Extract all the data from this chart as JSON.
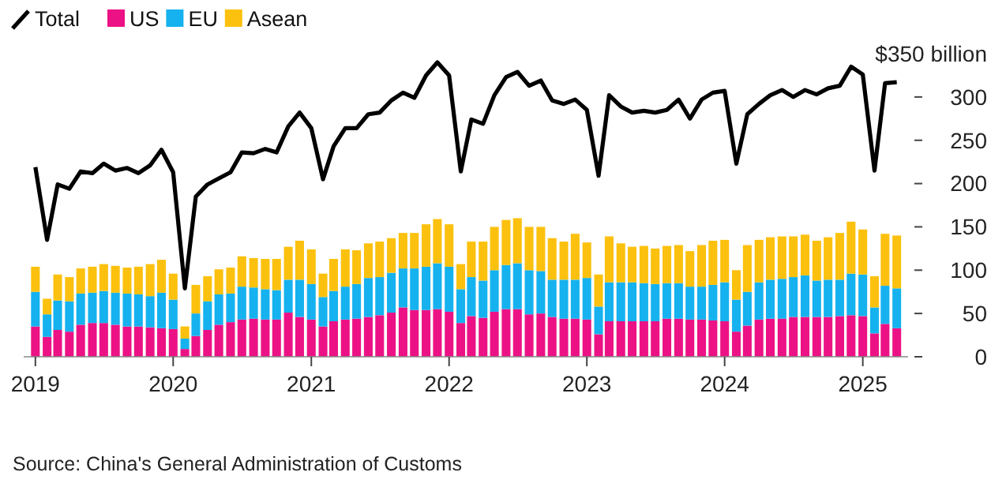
{
  "chart_data": {
    "type": "bar",
    "stacked": true,
    "legend": "top left",
    "grid": false,
    "marker": "none",
    "line_style": "solid",
    "x": [
      "2019-01",
      "2019-02",
      "2019-03",
      "2019-04",
      "2019-05",
      "2019-06",
      "2019-07",
      "2019-08",
      "2019-09",
      "2019-10",
      "2019-11",
      "2019-12",
      "2020-01",
      "2020-02",
      "2020-03",
      "2020-04",
      "2020-05",
      "2020-06",
      "2020-07",
      "2020-08",
      "2020-09",
      "2020-10",
      "2020-11",
      "2020-12",
      "2021-01",
      "2021-02",
      "2021-03",
      "2021-04",
      "2021-05",
      "2021-06",
      "2021-07",
      "2021-08",
      "2021-09",
      "2021-10",
      "2021-11",
      "2021-12",
      "2022-01",
      "2022-02",
      "2022-03",
      "2022-04",
      "2022-05",
      "2022-06",
      "2022-07",
      "2022-08",
      "2022-09",
      "2022-10",
      "2022-11",
      "2022-12",
      "2023-01",
      "2023-02",
      "2023-03",
      "2023-04",
      "2023-05",
      "2023-06",
      "2023-07",
      "2023-08",
      "2023-09",
      "2023-10",
      "2023-11",
      "2023-12",
      "2024-01",
      "2024-02",
      "2024-03",
      "2024-04",
      "2024-05",
      "2024-06",
      "2024-07",
      "2024-08",
      "2024-09",
      "2024-10",
      "2024-11",
      "2024-12",
      "2025-01",
      "2025-02",
      "2025-03",
      "2025-04"
    ],
    "series": [
      {
        "name": "Total",
        "type": "line",
        "color": "#000000",
        "values": [
          219,
          135,
          199,
          194,
          214,
          212,
          223,
          215,
          218,
          212,
          221,
          239,
          213,
          79,
          185,
          199,
          206,
          213,
          236,
          235,
          240,
          236,
          266,
          282,
          264,
          205,
          243,
          264,
          264,
          280,
          282,
          296,
          305,
          299,
          325,
          340,
          325,
          214,
          274,
          269,
          302,
          323,
          329,
          313,
          319,
          296,
          292,
          297,
          285,
          209,
          302,
          289,
          282,
          284,
          282,
          285,
          297,
          275,
          297,
          305,
          307,
          223,
          280,
          292,
          302,
          308,
          300,
          308,
          303,
          310,
          313,
          335,
          326,
          215,
          316,
          317
        ]
      },
      {
        "name": "US",
        "color": "#ec1285",
        "values": [
          35,
          23,
          31,
          29,
          37,
          39,
          39,
          37,
          35,
          35,
          34,
          33,
          32,
          9,
          24,
          31,
          37,
          40,
          43,
          44,
          43,
          43,
          51,
          46,
          43,
          35,
          41,
          43,
          44,
          46,
          48,
          51,
          57,
          54,
          54,
          55,
          52,
          39,
          47,
          45,
          52,
          55,
          55,
          49,
          50,
          46,
          44,
          44,
          43,
          26,
          41,
          41,
          41,
          41,
          41,
          44,
          44,
          43,
          43,
          42,
          41,
          29,
          36,
          43,
          44,
          44,
          46,
          46,
          46,
          46,
          47,
          48,
          47,
          27,
          38,
          33
        ]
      },
      {
        "name": "EU",
        "color": "#15b2ef",
        "values": [
          40,
          26,
          34,
          35,
          36,
          35,
          37,
          37,
          38,
          37,
          36,
          41,
          34,
          12,
          26,
          33,
          35,
          33,
          38,
          36,
          35,
          34,
          38,
          43,
          41,
          34,
          35,
          38,
          40,
          45,
          44,
          46,
          45,
          48,
          50,
          53,
          52,
          39,
          45,
          43,
          48,
          51,
          53,
          51,
          49,
          43,
          45,
          45,
          48,
          32,
          45,
          45,
          45,
          44,
          43,
          41,
          41,
          38,
          38,
          41,
          45,
          37,
          39,
          43,
          45,
          46,
          46,
          48,
          42,
          43,
          42,
          48,
          48,
          30,
          44,
          46
        ]
      },
      {
        "name": "Asean",
        "color": "#fcc10e",
        "values": [
          29,
          18,
          30,
          28,
          29,
          30,
          31,
          31,
          30,
          32,
          37,
          38,
          30,
          14,
          33,
          29,
          29,
          30,
          35,
          34,
          35,
          36,
          38,
          45,
          40,
          27,
          37,
          43,
          39,
          40,
          41,
          40,
          41,
          41,
          49,
          51,
          49,
          29,
          41,
          45,
          50,
          52,
          52,
          50,
          51,
          48,
          44,
          53,
          41,
          37,
          53,
          45,
          41,
          43,
          41,
          43,
          44,
          41,
          48,
          51,
          49,
          34,
          54,
          49,
          49,
          49,
          47,
          47,
          46,
          49,
          54,
          60,
          52,
          36,
          60,
          61
        ]
      }
    ],
    "xlim": [
      "2018-12",
      "2025-05"
    ],
    "xticks": [
      "2019",
      "2020",
      "2021",
      "2022",
      "2023",
      "2024",
      "2025"
    ],
    "ylim": [
      0,
      350
    ],
    "yticks": [
      0,
      50,
      100,
      150,
      200,
      250,
      300,
      {
        "value": 350,
        "label": "$350 billion"
      }
    ],
    "annotations": [
      "Source: China's General Administration of Customs"
    ]
  }
}
